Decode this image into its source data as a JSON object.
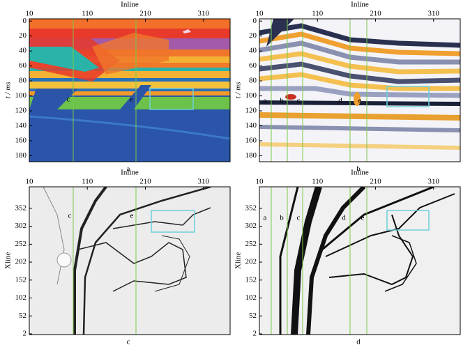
{
  "chart_data": [
    {
      "type": "image",
      "caption": "a",
      "xlabel": "Inline",
      "ylabel": "t / ms",
      "xlim": [
        10,
        356
      ],
      "ylim": [
        188,
        -3
      ],
      "xticks": [
        10,
        110,
        210,
        310
      ],
      "yticks": [
        0,
        20,
        40,
        60,
        80,
        100,
        120,
        140,
        160,
        180
      ],
      "annotations": [
        "c",
        "e"
      ]
    },
    {
      "type": "image",
      "caption": "b",
      "xlabel": "Inline",
      "ylabel": "t / ms",
      "xlim": [
        10,
        356
      ],
      "ylim": [
        188,
        -3
      ],
      "xticks": [
        10,
        110,
        210,
        310
      ],
      "yticks": [
        0,
        20,
        40,
        60,
        80,
        100,
        120,
        140,
        160,
        180
      ],
      "annotations": [
        "a",
        "b",
        "c",
        "d",
        "e"
      ]
    },
    {
      "type": "image",
      "caption": "c",
      "xlabel": "Inline",
      "ylabel": "Xline",
      "xlim": [
        10,
        356
      ],
      "ylim": [
        0,
        412
      ],
      "xticks": [
        10,
        110,
        210,
        310
      ],
      "yticks": [
        2,
        52,
        102,
        152,
        202,
        252,
        302,
        352
      ],
      "annotations": [
        "c",
        "e"
      ]
    },
    {
      "type": "image",
      "caption": "d",
      "xlabel": "Inline",
      "ylabel": "Xline",
      "xlim": [
        10,
        356
      ],
      "ylim": [
        0,
        412
      ],
      "xticks": [
        10,
        110,
        210,
        310
      ],
      "yticks": [
        2,
        52,
        102,
        152,
        202,
        252,
        302,
        352
      ],
      "annotations": [
        "a",
        "b",
        "c",
        "d",
        "e"
      ]
    }
  ]
}
